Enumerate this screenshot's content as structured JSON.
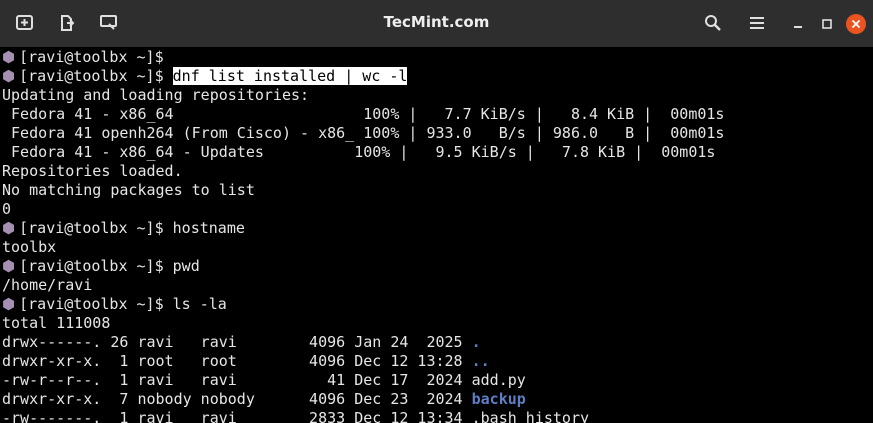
{
  "window": {
    "title": "TecMint.com"
  },
  "terminal": {
    "lines": [
      {
        "prompt": "[ravi@toolbx ~]$",
        "command": ""
      },
      {
        "prompt": "[ravi@toolbx ~]$",
        "command": "dnf list installed | wc -l",
        "selected": true
      },
      {
        "text": "Updating and loading repositories:"
      },
      {
        "text": " Fedora 41 - x86_64                     100% |   7.7 KiB/s |   8.4 KiB |  00m01s"
      },
      {
        "text": " Fedora 41 openh264 (From Cisco) - x86_ 100% | 933.0   B/s | 986.0   B |  00m01s"
      },
      {
        "text": " Fedora 41 - x86_64 - Updates          100% |   9.5 KiB/s |   7.8 KiB |  00m01s"
      },
      {
        "text": "Repositories loaded."
      },
      {
        "text": "No matching packages to list"
      },
      {
        "text": "0"
      },
      {
        "prompt": "[ravi@toolbx ~]$",
        "command": "hostname"
      },
      {
        "text": "toolbx"
      },
      {
        "prompt": "[ravi@toolbx ~]$",
        "command": "pwd"
      },
      {
        "text": "/home/ravi"
      },
      {
        "prompt": "[ravi@toolbx ~]$",
        "command": "ls -la"
      },
      {
        "text": "total 111008"
      },
      {
        "text": "drwx------. 26 ravi   ravi        4096 Jan 24  2025",
        "file": ".",
        "color": "#5f7fc4"
      },
      {
        "text": "drwxr-xr-x.  1 root   root        4096 Dec 12 13:28",
        "file": "..",
        "color": "#5f7fc4"
      },
      {
        "text": "-rw-r--r--.  1 ravi   ravi          41 Dec 17  2024",
        "file": "add.py",
        "color": "#e6e6e6"
      },
      {
        "text": "drwxr-xr-x.  7 nobody nobody      4096 Dec 23  2024",
        "file": "backup",
        "color": "#5f7fc4"
      },
      {
        "text": "-rw-------.  1 ravi   ravi        2833 Dec 12 13:34",
        "file": ".bash_history",
        "color": "#e6e6e6"
      }
    ]
  }
}
